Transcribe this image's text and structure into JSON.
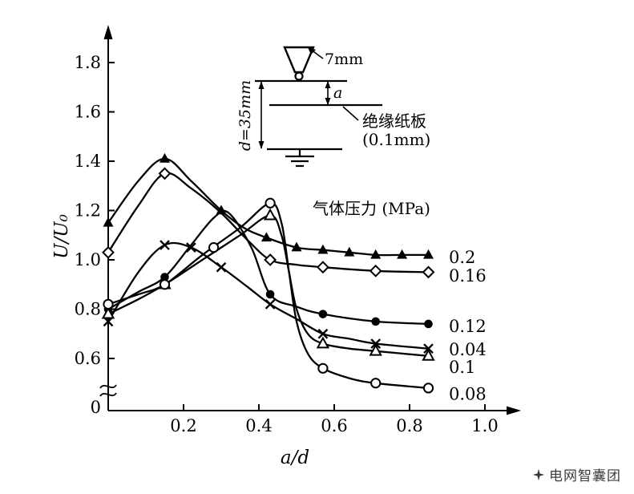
{
  "watermark": {
    "text": "电网智囊团"
  },
  "inset": {
    "tip_width_label": "7mm",
    "gap_label": "a",
    "depth_label": "d=35mm",
    "paper_label_line1": "绝缘纸板",
    "paper_label_line2": "(0.1mm)"
  },
  "chart_data": {
    "type": "line",
    "title": "",
    "xlabel": "a/d",
    "ylabel": "U/U₀",
    "legend_title": "气体压力 (MPa)",
    "grid": false,
    "x_axis": {
      "ticks": [
        0.2,
        0.4,
        0.6,
        0.8,
        1.0
      ],
      "tick_labels": [
        "0.2",
        "0.4",
        "0.6",
        "0.8",
        "1.0"
      ],
      "range": [
        0,
        1.05
      ]
    },
    "y_axis": {
      "ticks": [
        0.6,
        0.8,
        1.0,
        1.2,
        1.4,
        1.6,
        1.8
      ],
      "tick_labels": [
        "0.6",
        "0.8",
        "1.0",
        "1.2",
        "1.4",
        "1.6",
        "1.8"
      ],
      "zero_label": "0",
      "axis_break": true,
      "range_displayed": [
        0.4,
        1.9
      ]
    },
    "series": [
      {
        "name": "0.2",
        "label": "0.2",
        "marker": "filled-triangle",
        "label_y": 1.01,
        "points": [
          [
            0,
            1.15
          ],
          [
            0.08,
            1.32
          ],
          [
            0.15,
            1.41
          ],
          [
            0.22,
            1.32
          ],
          [
            0.3,
            1.2
          ],
          [
            0.36,
            1.13
          ],
          [
            0.42,
            1.09
          ],
          [
            0.5,
            1.05
          ],
          [
            0.57,
            1.04
          ],
          [
            0.64,
            1.03
          ],
          [
            0.71,
            1.02
          ],
          [
            0.78,
            1.02
          ],
          [
            0.85,
            1.02
          ]
        ],
        "markers": [
          [
            0,
            1.15
          ],
          [
            0.15,
            1.41
          ],
          [
            0.3,
            1.2
          ],
          [
            0.42,
            1.09
          ],
          [
            0.5,
            1.05
          ],
          [
            0.57,
            1.04
          ],
          [
            0.64,
            1.03
          ],
          [
            0.71,
            1.02
          ],
          [
            0.78,
            1.02
          ],
          [
            0.85,
            1.02
          ]
        ]
      },
      {
        "name": "0.16",
        "label": "0.16",
        "marker": "open-diamond",
        "label_y": 0.935,
        "points": [
          [
            0,
            1.03
          ],
          [
            0.08,
            1.22
          ],
          [
            0.15,
            1.35
          ],
          [
            0.22,
            1.29
          ],
          [
            0.3,
            1.19
          ],
          [
            0.37,
            1.08
          ],
          [
            0.43,
            1.0
          ],
          [
            0.5,
            0.98
          ],
          [
            0.57,
            0.97
          ],
          [
            0.71,
            0.955
          ],
          [
            0.85,
            0.95
          ]
        ],
        "markers": [
          [
            0,
            1.03
          ],
          [
            0.15,
            1.35
          ],
          [
            0.43,
            1.0
          ],
          [
            0.57,
            0.97
          ],
          [
            0.71,
            0.955
          ],
          [
            0.85,
            0.95
          ]
        ]
      },
      {
        "name": "0.12",
        "label": "0.12",
        "marker": "filled-circle",
        "label_y": 0.73,
        "points": [
          [
            0,
            0.8
          ],
          [
            0.08,
            0.87
          ],
          [
            0.15,
            0.93
          ],
          [
            0.22,
            1.06
          ],
          [
            0.28,
            1.17
          ],
          [
            0.32,
            1.19
          ],
          [
            0.38,
            1.05
          ],
          [
            0.43,
            0.86
          ],
          [
            0.5,
            0.81
          ],
          [
            0.57,
            0.78
          ],
          [
            0.71,
            0.75
          ],
          [
            0.85,
            0.74
          ]
        ],
        "markers": [
          [
            0,
            0.8
          ],
          [
            0.15,
            0.93
          ],
          [
            0.43,
            0.86
          ],
          [
            0.57,
            0.78
          ],
          [
            0.71,
            0.75
          ],
          [
            0.85,
            0.74
          ]
        ]
      },
      {
        "name": "0.04",
        "label": "0.04",
        "marker": "x-cross",
        "label_y": 0.635,
        "points": [
          [
            0,
            0.75
          ],
          [
            0.08,
            0.95
          ],
          [
            0.15,
            1.06
          ],
          [
            0.22,
            1.05
          ],
          [
            0.3,
            0.97
          ],
          [
            0.37,
            0.89
          ],
          [
            0.43,
            0.82
          ],
          [
            0.5,
            0.76
          ],
          [
            0.57,
            0.7
          ],
          [
            0.64,
            0.68
          ],
          [
            0.71,
            0.66
          ],
          [
            0.85,
            0.64
          ]
        ],
        "markers": [
          [
            0,
            0.75
          ],
          [
            0.15,
            1.06
          ],
          [
            0.22,
            1.05
          ],
          [
            0.3,
            0.97
          ],
          [
            0.43,
            0.82
          ],
          [
            0.57,
            0.7
          ],
          [
            0.71,
            0.66
          ],
          [
            0.85,
            0.64
          ]
        ]
      },
      {
        "name": "0.1",
        "label": "0.1",
        "marker": "open-triangle",
        "label_y": 0.565,
        "points": [
          [
            0,
            0.78
          ],
          [
            0.08,
            0.84
          ],
          [
            0.15,
            0.9
          ],
          [
            0.25,
            1.0
          ],
          [
            0.35,
            1.1
          ],
          [
            0.43,
            1.18
          ],
          [
            0.46,
            1.1
          ],
          [
            0.48,
            0.95
          ],
          [
            0.5,
            0.8
          ],
          [
            0.53,
            0.7
          ],
          [
            0.57,
            0.66
          ],
          [
            0.64,
            0.64
          ],
          [
            0.71,
            0.63
          ],
          [
            0.85,
            0.61
          ]
        ],
        "markers": [
          [
            0,
            0.78
          ],
          [
            0.15,
            0.9
          ],
          [
            0.43,
            1.18
          ],
          [
            0.57,
            0.66
          ],
          [
            0.71,
            0.63
          ],
          [
            0.85,
            0.61
          ]
        ]
      },
      {
        "name": "0.08",
        "label": "0.08",
        "marker": "open-circle",
        "label_y": 0.455,
        "points": [
          [
            0,
            0.82
          ],
          [
            0.08,
            0.86
          ],
          [
            0.15,
            0.9
          ],
          [
            0.25,
            1.02
          ],
          [
            0.35,
            1.13
          ],
          [
            0.43,
            1.23
          ],
          [
            0.46,
            1.15
          ],
          [
            0.48,
            0.95
          ],
          [
            0.5,
            0.75
          ],
          [
            0.53,
            0.62
          ],
          [
            0.57,
            0.56
          ],
          [
            0.64,
            0.52
          ],
          [
            0.71,
            0.5
          ],
          [
            0.85,
            0.48
          ]
        ],
        "markers": [
          [
            0,
            0.82
          ],
          [
            0.15,
            0.9
          ],
          [
            0.28,
            1.05
          ],
          [
            0.43,
            1.23
          ],
          [
            0.57,
            0.56
          ],
          [
            0.71,
            0.5
          ],
          [
            0.85,
            0.48
          ]
        ]
      }
    ]
  }
}
